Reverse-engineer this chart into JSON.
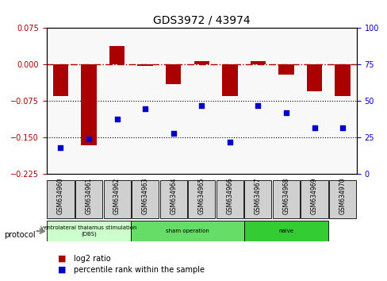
{
  "title": "GDS3972 / 43974",
  "samples": [
    "GSM634960",
    "GSM634961",
    "GSM634962",
    "GSM634963",
    "GSM634964",
    "GSM634965",
    "GSM634966",
    "GSM634967",
    "GSM634968",
    "GSM634969",
    "GSM634970"
  ],
  "log2_ratio": [
    -0.065,
    -0.165,
    0.038,
    -0.002,
    -0.04,
    0.008,
    -0.065,
    0.008,
    -0.02,
    -0.055,
    -0.065
  ],
  "percentile_rank": [
    18,
    24,
    38,
    45,
    28,
    47,
    22,
    47,
    42,
    32,
    32
  ],
  "bar_color": "#aa0000",
  "dot_color": "#0000cc",
  "ylim_left": [
    -0.225,
    0.075
  ],
  "ylim_right": [
    0,
    100
  ],
  "yticks_left": [
    0.075,
    0,
    -0.075,
    -0.15,
    -0.225
  ],
  "yticks_right": [
    100,
    75,
    50,
    25,
    0
  ],
  "hline_dotted": [
    -0.075,
    -0.15
  ],
  "hline_dashed": 0,
  "groups": [
    {
      "label": "ventrolateral thalamus stimulation\n(DBS)",
      "start": 0,
      "end": 3,
      "color": "#ccffcc"
    },
    {
      "label": "sham operation",
      "start": 3,
      "end": 7,
      "color": "#66dd66"
    },
    {
      "label": "naive",
      "start": 7,
      "end": 10,
      "color": "#33cc33"
    }
  ],
  "legend_items": [
    {
      "label": "log2 ratio",
      "color": "#aa0000"
    },
    {
      "label": "percentile rank within the sample",
      "color": "#0000cc"
    }
  ],
  "protocol_label": "protocol",
  "background_color": "#ffffff"
}
